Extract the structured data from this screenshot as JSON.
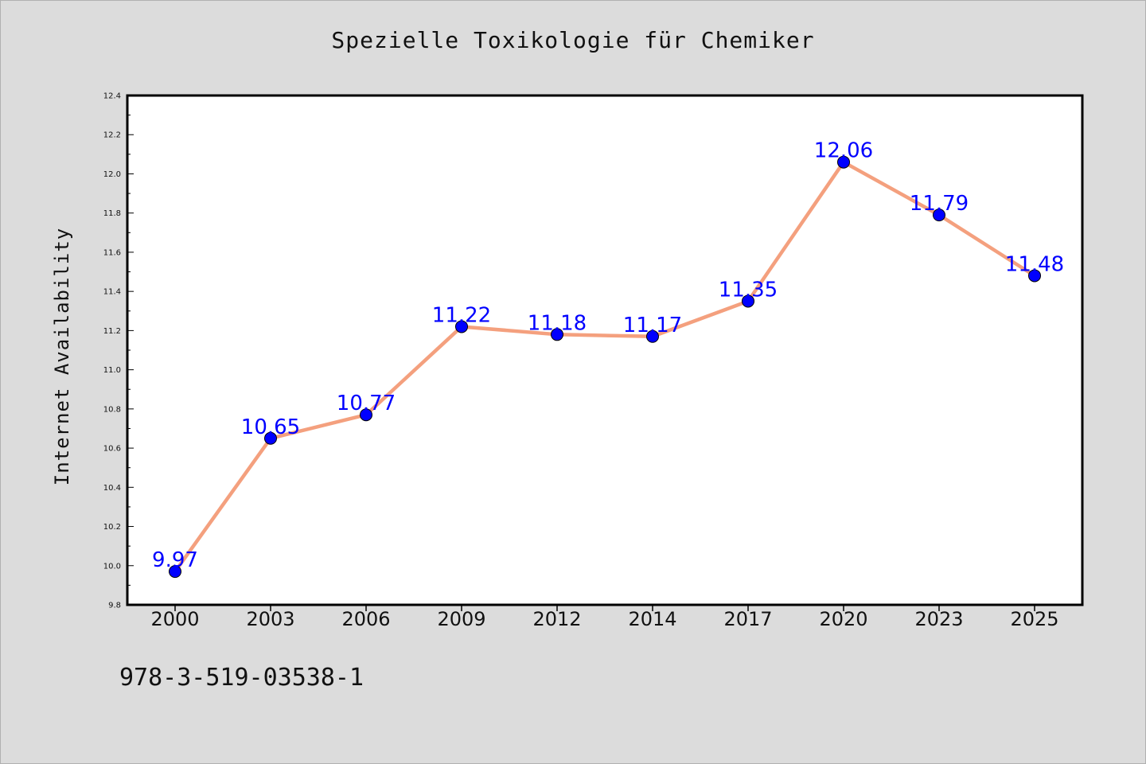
{
  "title": "Spezielle Toxikologie für Chemiker",
  "footer_text": "978-3-519-03538-1",
  "chart_data": {
    "type": "line",
    "title": "Spezielle Toxikologie für Chemiker",
    "xlabel": "",
    "ylabel": "Internet Availability",
    "categories": [
      "2000",
      "2003",
      "2006",
      "2009",
      "2012",
      "2014",
      "2017",
      "2020",
      "2023",
      "2025"
    ],
    "series": [
      {
        "values": [
          9.97,
          10.65,
          10.77,
          11.22,
          11.18,
          11.17,
          11.35,
          12.06,
          11.79,
          11.48
        ],
        "line_color": "#f4a07e",
        "marker_color": "#0000ff"
      }
    ],
    "data_labels": [
      "9.97",
      "10.65",
      "10.77",
      "11.22",
      "11.18",
      "11.17",
      "11.35",
      "12.06",
      "11.79",
      "11.48"
    ],
    "ylim": [
      9.8,
      12.4
    ],
    "y_ticks": [
      "9.8",
      "10.0",
      "10.2",
      "10.4",
      "10.6",
      "10.8",
      "11.0",
      "11.2",
      "11.4",
      "11.6",
      "11.8",
      "12.0",
      "12.2",
      "12.4"
    ],
    "grid": false,
    "legend": "none",
    "plot_background": "#ffffff",
    "page_background": "#dcdcdc"
  }
}
